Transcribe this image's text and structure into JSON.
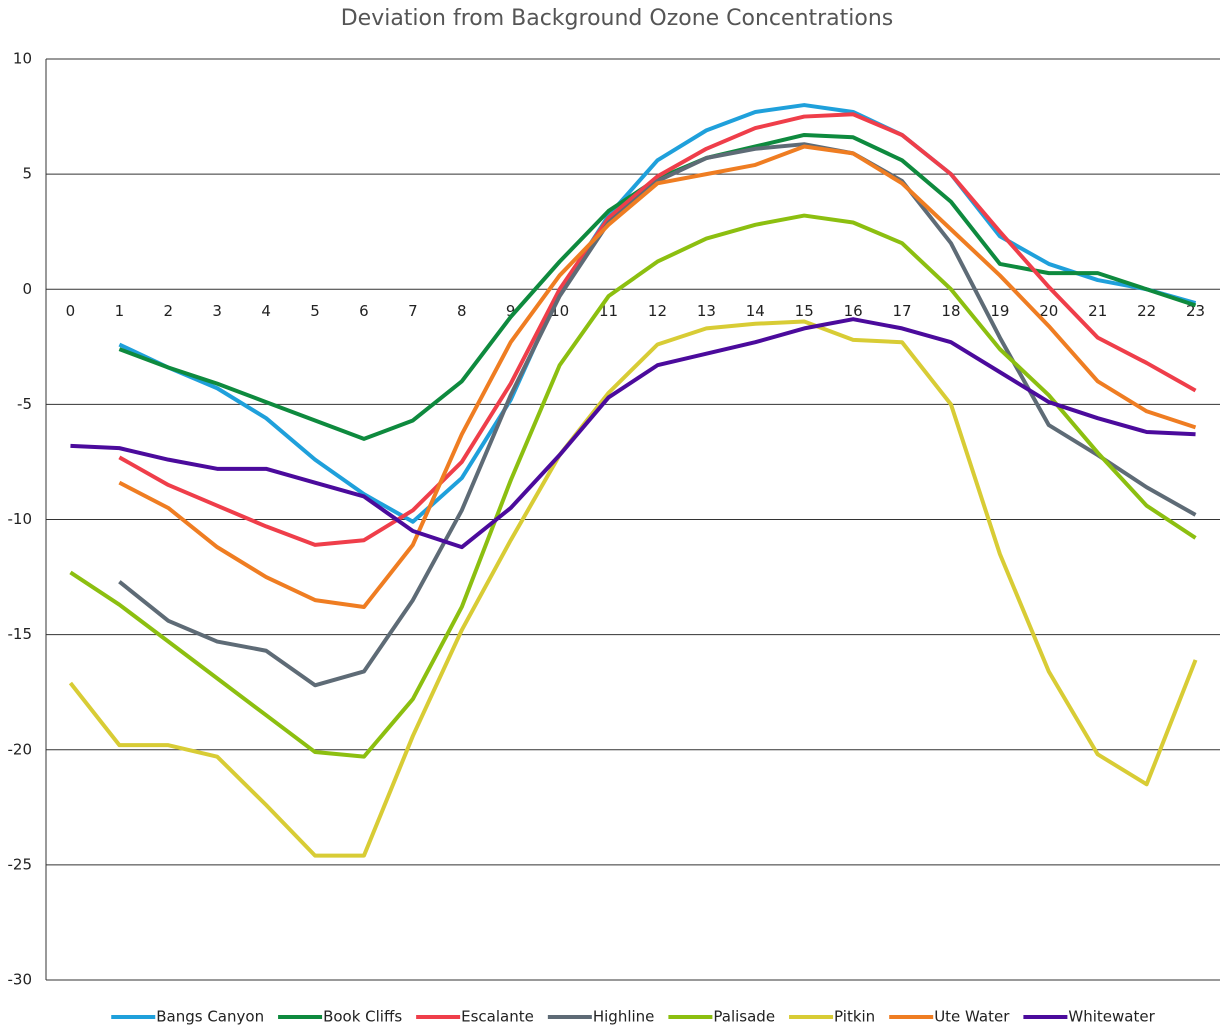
{
  "chart_data": {
    "type": "line",
    "title": "Deviation from Background Ozone Concentrations",
    "categories": [
      "0",
      "1",
      "2",
      "3",
      "4",
      "5",
      "6",
      "7",
      "8",
      "9",
      "10",
      "11",
      "12",
      "13",
      "14",
      "15",
      "16",
      "17",
      "18",
      "19",
      "20",
      "21",
      "22",
      "23"
    ],
    "ylim": [
      -30,
      10
    ],
    "yticks": [
      -30,
      -25,
      -20,
      -15,
      -10,
      -5,
      0,
      5,
      10
    ],
    "grid": true,
    "legend": "bottom",
    "series": [
      {
        "name": "Bangs Canyon",
        "color": "#1fa0db",
        "values": [
          null,
          -2.4,
          -3.4,
          -4.3,
          -5.6,
          -7.4,
          -8.9,
          -10.1,
          -8.2,
          -4.8,
          -0.1,
          3.2,
          5.6,
          6.9,
          7.7,
          8.0,
          7.7,
          6.7,
          5.0,
          2.3,
          1.1,
          0.4,
          0,
          -0.6
        ]
      },
      {
        "name": "Book Cliffs",
        "color": "#0e8a3e",
        "values": [
          null,
          -2.6,
          -3.4,
          -4.1,
          -4.9,
          -5.7,
          -6.5,
          -5.7,
          -4.0,
          -1.2,
          1.2,
          3.4,
          4.8,
          5.7,
          6.2,
          6.7,
          6.6,
          5.6,
          3.8,
          1.1,
          0.7,
          0.7,
          0,
          -0.7
        ]
      },
      {
        "name": "Escalante",
        "color": "#ef3e4a",
        "values": [
          null,
          -7.3,
          -8.5,
          -9.4,
          -10.3,
          -11.1,
          -10.9,
          -9.6,
          -7.5,
          -4.1,
          0,
          3.1,
          4.9,
          6.1,
          7.0,
          7.5,
          7.6,
          6.7,
          5.0,
          2.5,
          0.1,
          -2.1,
          -3.2,
          -4.4
        ]
      },
      {
        "name": "Highline",
        "color": "#5e6b76",
        "values": [
          null,
          -12.7,
          -14.4,
          -15.3,
          -15.7,
          -17.2,
          -16.6,
          -13.5,
          -9.6,
          -4.6,
          -0.3,
          2.9,
          4.7,
          5.7,
          6.1,
          6.3,
          5.9,
          4.7,
          2.0,
          -2.1,
          -5.9,
          -7.2,
          -8.6,
          -9.8
        ]
      },
      {
        "name": "Palisade",
        "color": "#8cbf10",
        "values": [
          -12.3,
          -13.7,
          -15.3,
          -16.9,
          -18.5,
          -20.1,
          -20.3,
          -17.8,
          -13.8,
          -8.3,
          -3.3,
          -0.3,
          1.2,
          2.2,
          2.8,
          3.2,
          2.9,
          2.0,
          0,
          -2.6,
          -4.6,
          -7.1,
          -9.4,
          -10.8
        ]
      },
      {
        "name": "Pitkin",
        "color": "#d8cc35",
        "values": [
          -17.1,
          -19.8,
          -19.8,
          -20.3,
          -22.4,
          -24.6,
          -24.6,
          -19.4,
          -14.8,
          -10.9,
          -7.2,
          -4.5,
          -2.4,
          -1.7,
          -1.5,
          -1.4,
          -2.2,
          -2.3,
          -5.0,
          -11.5,
          -16.6,
          -20.2,
          -21.5,
          -16.1
        ]
      },
      {
        "name": "Ute Water",
        "color": "#ef7d22",
        "values": [
          null,
          -8.4,
          -9.5,
          -11.2,
          -12.5,
          -13.5,
          -13.8,
          -11.1,
          -6.3,
          -2.3,
          0.6,
          2.8,
          4.6,
          5.0,
          5.4,
          6.2,
          5.9,
          4.6,
          2.6,
          0.6,
          -1.6,
          -4.0,
          -5.3,
          -6.0
        ]
      },
      {
        "name": "Whitewater",
        "color": "#4b0b9c",
        "values": [
          -6.8,
          -6.9,
          -7.4,
          -7.8,
          -7.8,
          -8.4,
          -9.0,
          -10.5,
          -11.2,
          -9.5,
          -7.2,
          -4.7,
          -3.3,
          -2.8,
          -2.3,
          -1.7,
          -1.3,
          -1.7,
          -2.3,
          -3.6,
          -4.9,
          -5.6,
          -6.2,
          -6.3
        ]
      }
    ]
  }
}
